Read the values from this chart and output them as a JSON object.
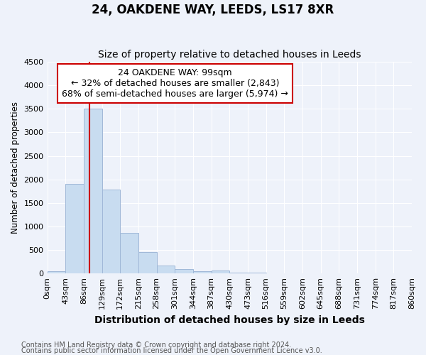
{
  "title": "24, OAKDENE WAY, LEEDS, LS17 8XR",
  "subtitle": "Size of property relative to detached houses in Leeds",
  "xlabel": "Distribution of detached houses by size in Leeds",
  "ylabel": "Number of detached properties",
  "footnote1": "Contains HM Land Registry data © Crown copyright and database right 2024.",
  "footnote2": "Contains public sector information licensed under the Open Government Licence v3.0.",
  "annotation_line1": "24 OAKDENE WAY: 99sqm",
  "annotation_line2": "← 32% of detached houses are smaller (2,843)",
  "annotation_line3": "68% of semi-detached houses are larger (5,974) →",
  "bar_color": "#c8dcf0",
  "bar_edge_color": "#a0b8d8",
  "vline_color": "#cc0000",
  "vline_x": 99,
  "bin_edges": [
    0,
    43,
    86,
    129,
    172,
    215,
    258,
    301,
    344,
    387,
    430,
    473,
    516,
    559,
    602,
    645,
    688,
    731,
    774,
    817,
    860
  ],
  "bar_heights": [
    50,
    1900,
    3500,
    1780,
    860,
    460,
    175,
    90,
    50,
    65,
    20,
    15,
    10,
    5,
    4,
    3,
    2,
    2,
    1,
    1
  ],
  "ylim": [
    0,
    4500
  ],
  "yticks": [
    0,
    500,
    1000,
    1500,
    2000,
    2500,
    3000,
    3500,
    4000,
    4500
  ],
  "xlim": [
    0,
    860
  ],
  "background_color": "#eef2fa",
  "plot_bg_color": "#eef2fa",
  "grid_color": "#ffffff",
  "title_fontsize": 12,
  "subtitle_fontsize": 10,
  "xlabel_fontsize": 10,
  "ylabel_fontsize": 8.5,
  "tick_fontsize": 8,
  "annotation_fontsize": 9,
  "footnote_fontsize": 7
}
